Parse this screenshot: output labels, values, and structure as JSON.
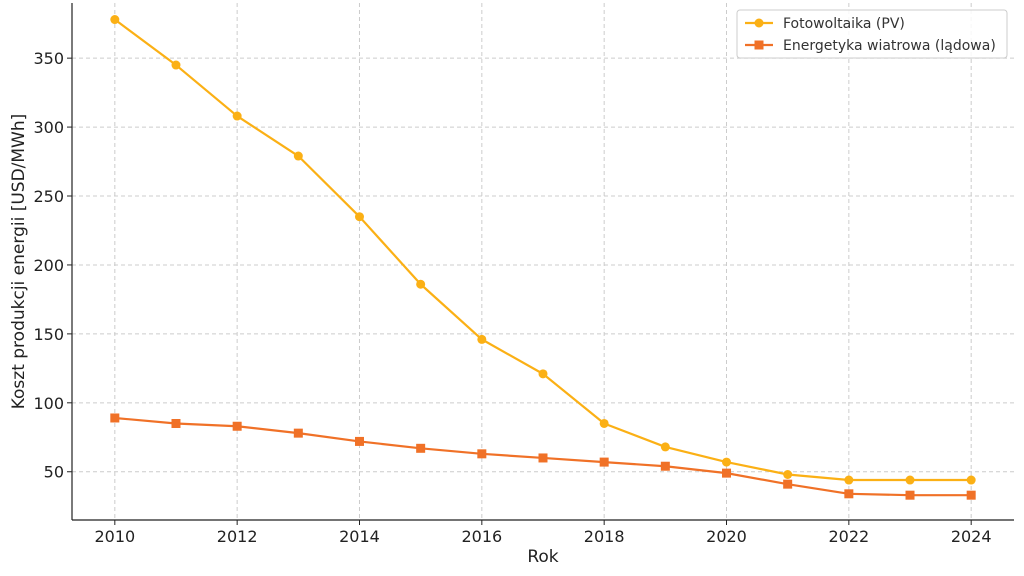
{
  "chart_data": {
    "type": "line",
    "xlabel": "Rok",
    "ylabel": "Koszt produkcji energii [USD/MWh]",
    "x": [
      2010,
      2011,
      2012,
      2013,
      2014,
      2015,
      2016,
      2017,
      2018,
      2019,
      2020,
      2021,
      2022,
      2023,
      2024
    ],
    "xlim": [
      2009.3,
      2024.7
    ],
    "ylim": [
      15,
      390
    ],
    "xticks": [
      2010,
      2012,
      2014,
      2016,
      2018,
      2020,
      2022,
      2024
    ],
    "yticks": [
      50,
      100,
      150,
      200,
      250,
      300,
      350
    ],
    "grid": true,
    "legend_position": "top-right",
    "series": [
      {
        "name": "Fotowoltaika (PV)",
        "color": "#fbb015",
        "marker": "circle",
        "values": [
          378,
          345,
          308,
          279,
          235,
          186,
          146,
          121,
          85,
          68,
          57,
          48,
          44,
          44,
          44
        ]
      },
      {
        "name": "Energetyka wiatrowa (lądowa)",
        "color": "#f07127",
        "marker": "square",
        "values": [
          89,
          85,
          83,
          78,
          72,
          67,
          63,
          60,
          57,
          54,
          49,
          41,
          34,
          33,
          33
        ]
      }
    ]
  }
}
